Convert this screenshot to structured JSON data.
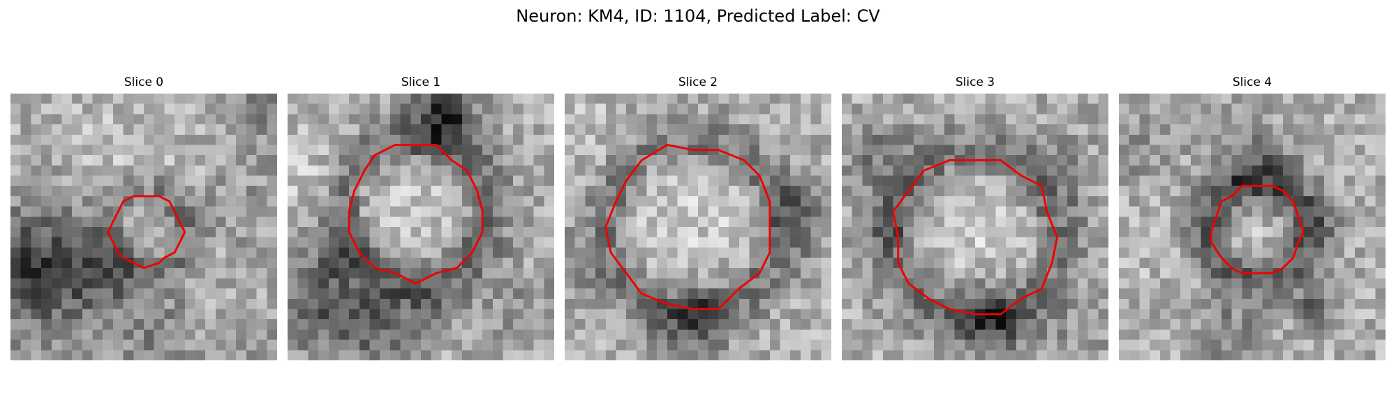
{
  "figure": {
    "title": "Neuron: KM4, ID: 1104, Predicted Label: CV"
  },
  "contour_color": "#ee0000",
  "image_style": "grayscale microscopy crop",
  "slices": [
    {
      "title": "Slice 0",
      "seed": 11,
      "ring": {
        "cx": 13.2,
        "cy": 13.4,
        "r": 3.6,
        "depth": 55,
        "width": 1.6,
        "inner": 18
      },
      "features": [
        {
          "x": 3,
          "y": 15.8,
          "r": 5.2,
          "d": -65
        },
        {
          "x": 8.8,
          "y": 17.8,
          "r": 2.4,
          "d": -55
        },
        {
          "x": 2.0,
          "y": 18.5,
          "r": 3.5,
          "d": -55
        },
        {
          "x": 14,
          "y": 23.5,
          "r": 3.0,
          "d": -45
        },
        {
          "x": 25,
          "y": 26,
          "r": 3,
          "d": -30
        },
        {
          "x": 22.5,
          "y": 11,
          "r": 2.5,
          "d": -30
        },
        {
          "x": 25,
          "y": 1.5,
          "r": 3,
          "d": -40
        },
        {
          "x": 10,
          "y": 8,
          "r": 5,
          "d": 20
        }
      ]
    },
    {
      "title": "Slice 1",
      "seed": 23,
      "ring": {
        "cx": 12.5,
        "cy": 11.5,
        "r": 6.8,
        "depth": 60,
        "width": 2.0,
        "inner": 25
      },
      "features": [
        {
          "x": 15.3,
          "y": 2.1,
          "r": 2.2,
          "d": -120
        },
        {
          "x": 8,
          "y": 22.5,
          "r": 2.8,
          "d": -85
        },
        {
          "x": 2,
          "y": 21,
          "r": 2.5,
          "d": -75
        },
        {
          "x": 4.5,
          "y": 16,
          "r": 2.0,
          "d": -55
        },
        {
          "x": 14,
          "y": 20,
          "r": 2.5,
          "d": -30
        },
        {
          "x": 23,
          "y": 21,
          "r": 3,
          "d": -25
        },
        {
          "x": 2,
          "y": 8,
          "r": 3,
          "d": 25
        }
      ]
    },
    {
      "title": "Slice 2",
      "seed": 37,
      "ring": {
        "cx": 12.4,
        "cy": 13.0,
        "r": 8.2,
        "depth": 50,
        "width": 2.0,
        "inner": 25
      },
      "features": [
        {
          "x": 12.5,
          "y": 21.8,
          "r": 2.6,
          "d": -70
        },
        {
          "x": 22.6,
          "y": 10.8,
          "r": 2.0,
          "d": -45
        },
        {
          "x": 22.5,
          "y": 14,
          "r": 2.0,
          "d": -35
        },
        {
          "x": 1.5,
          "y": 16.5,
          "r": 2.0,
          "d": -30
        },
        {
          "x": 3,
          "y": 4,
          "r": 3,
          "d": 15
        }
      ]
    },
    {
      "title": "Slice 3",
      "seed": 41,
      "ring": {
        "cx": 12.9,
        "cy": 14.0,
        "r": 8.0,
        "depth": 55,
        "width": 2.2,
        "inner": 28
      },
      "features": [
        {
          "x": 15,
          "y": 21.8,
          "r": 2.2,
          "d": -85
        },
        {
          "x": 11,
          "y": 19.5,
          "r": 2.0,
          "d": -40
        },
        {
          "x": 3.3,
          "y": 6.0,
          "r": 2.5,
          "d": -45
        },
        {
          "x": 5.5,
          "y": 13,
          "r": 2.0,
          "d": -35
        },
        {
          "x": 21,
          "y": 7,
          "r": 3,
          "d": -25
        },
        {
          "x": 23.5,
          "y": 23,
          "r": 2.5,
          "d": -25
        }
      ]
    },
    {
      "title": "Slice 4",
      "seed": 53,
      "ring": {
        "cx": 13.5,
        "cy": 13.3,
        "r": 4.6,
        "depth": 80,
        "width": 1.7,
        "inner": 22
      },
      "features": [
        {
          "x": 13,
          "y": 6.6,
          "r": 2.6,
          "d": -55
        },
        {
          "x": 19.5,
          "y": 12.5,
          "r": 2.0,
          "d": -35
        },
        {
          "x": 19,
          "y": 21.2,
          "r": 1.2,
          "d": -80
        },
        {
          "x": 10.5,
          "y": 23.5,
          "r": 2.2,
          "d": -50
        },
        {
          "x": 2,
          "y": 5.5,
          "r": 2.5,
          "d": -30
        },
        {
          "x": 4,
          "y": 15,
          "r": 3,
          "d": 10
        }
      ]
    }
  ]
}
